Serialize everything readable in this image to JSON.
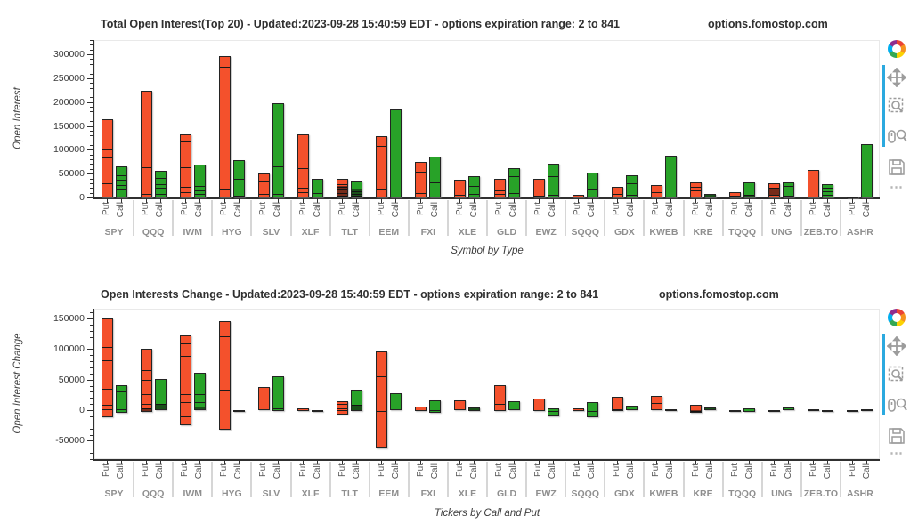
{
  "page": {
    "background": "#ffffff"
  },
  "colors": {
    "put": "#f4512c",
    "call": "#28a228",
    "bar_border": "#242424",
    "active_tool_accent": "#2ba9df",
    "category_label": "#8f8f8f"
  },
  "toolbar": {
    "icons": [
      {
        "name": "bokeh-logo",
        "active": false
      },
      {
        "name": "pan",
        "active": true
      },
      {
        "name": "box-zoom",
        "active": true
      },
      {
        "name": "wheel-zoom",
        "active": true
      },
      {
        "name": "save",
        "active": false
      },
      {
        "name": "more-options",
        "active": false
      }
    ]
  },
  "chart_data": [
    {
      "type": "bar",
      "title": "Total Open Interest(Top 20) - Updated:2023-09-28 15:40:59 EDT - options expiration range: 2 to 841",
      "watermark": "options.fomostop.com",
      "xlabel": "Symbol by Type",
      "ylabel": "Open Interest",
      "ylim": [
        0,
        330000
      ],
      "yticks": [
        0,
        50000,
        100000,
        150000,
        200000,
        250000,
        300000
      ],
      "minor_step": 10000,
      "grid": false,
      "legend": "none",
      "categories": [
        "SPY",
        "QQQ",
        "IWM",
        "HYG",
        "SLV",
        "XLF",
        "TLT",
        "EEM",
        "FXI",
        "XLE",
        "GLD",
        "EWZ",
        "SQQQ",
        "GDX",
        "KWEB",
        "KRE",
        "TQQQ",
        "UNG",
        "ZEB.TO",
        "ASHR"
      ],
      "bar_labels": [
        "Put",
        "Call"
      ],
      "series": [
        {
          "name": "Put",
          "color": "#f4512c",
          "ranges": [
            [
              0,
              164000
            ],
            [
              0,
              224000
            ],
            [
              0,
              133000
            ],
            [
              0,
              297000
            ],
            [
              0,
              50000
            ],
            [
              0,
              132000
            ],
            [
              0,
              40000
            ],
            [
              0,
              128000
            ],
            [
              0,
              74000
            ],
            [
              0,
              37000
            ],
            [
              0,
              40000
            ],
            [
              0,
              40000
            ],
            [
              0,
              5000
            ],
            [
              0,
              22000
            ],
            [
              0,
              27000
            ],
            [
              0,
              31000
            ],
            [
              0,
              11000
            ],
            [
              0,
              30000
            ],
            [
              0,
              57000
            ],
            [
              0,
              1500
            ]
          ],
          "lines": [
            [
              32000,
              86000,
              103000,
              122000
            ],
            [
              10000,
              66000
            ],
            [
              13000,
              24000,
              65000,
              119000
            ],
            [
              18000,
              276000
            ],
            [
              10000,
              35000
            ],
            [
              13000,
              22000,
              63000
            ],
            [
              6000,
              12000,
              18000,
              24000,
              30000
            ],
            [
              19000,
              110000
            ],
            [
              11000,
              21000,
              56000
            ],
            [
              8000
            ],
            [
              10000,
              17000
            ],
            [
              6000
            ],
            [],
            [
              10000
            ],
            [
              13000
            ],
            [
              17000,
              25000
            ],
            [
              5000
            ],
            [
              8000,
              22000
            ],
            [],
            []
          ],
          "dark": [
            [],
            [],
            [],
            [],
            [],
            [],
            [
              [
                0,
                26000
              ]
            ],
            [],
            [],
            [],
            [],
            [],
            [],
            [],
            [],
            [],
            [],
            [
              [
                8000,
                22000
              ]
            ],
            [],
            []
          ]
        },
        {
          "name": "Call",
          "color": "#28a228",
          "ranges": [
            [
              0,
              65000
            ],
            [
              0,
              56000
            ],
            [
              0,
              69000
            ],
            [
              0,
              78000
            ],
            [
              0,
              198000
            ],
            [
              0,
              40000
            ],
            [
              0,
              33000
            ],
            [
              0,
              185000
            ],
            [
              0,
              86000
            ],
            [
              0,
              45000
            ],
            [
              0,
              61000
            ],
            [
              0,
              70000
            ],
            [
              0,
              53000
            ],
            [
              0,
              47000
            ],
            [
              0,
              88000
            ],
            [
              0,
              8000
            ],
            [
              0,
              31000
            ],
            [
              0,
              31000
            ],
            [
              0,
              28000
            ],
            [
              0,
              112000
            ]
          ],
          "lines": [
            [
              19000,
              28000,
              40000,
              49000
            ],
            [
              10000,
              22000,
              29000,
              42000
            ],
            [
              9000,
              17000,
              27000,
              38000
            ],
            [
              5000,
              41000
            ],
            [
              10000,
              67000
            ],
            [
              11000
            ],
            [
              5000,
              10000,
              15000,
              20000
            ],
            [],
            [
              34000
            ],
            [
              9000,
              26000
            ],
            [
              12000,
              47000
            ],
            [
              7000,
              47000
            ],
            [
              19000
            ],
            [
              8000,
              20000,
              32000
            ],
            [
              4000
            ],
            [],
            [
              7000
            ],
            [
              5000,
              26000
            ],
            [
              8000,
              15000,
              22000
            ],
            []
          ],
          "dark": [
            [],
            [],
            [],
            [],
            [],
            [],
            [
              [
                0,
                20000
              ]
            ],
            [],
            [],
            [],
            [],
            [],
            [],
            [],
            [],
            [
              [
                0,
                8000
              ]
            ],
            [
              [
                0,
                7000
              ]
            ],
            [],
            [],
            []
          ]
        }
      ]
    },
    {
      "type": "bar",
      "title": "Open Interests Change - Updated:2023-09-28 15:40:59 EDT - options expiration range: 2 to 841",
      "watermark": "options.fomostop.com",
      "xlabel": "Tickers by Call and Put",
      "ylabel": "Open Interest Change",
      "ylim": [
        -80000,
        166000
      ],
      "yticks": [
        -50000,
        0,
        50000,
        100000,
        150000
      ],
      "minor_step": 10000,
      "grid": false,
      "legend": "none",
      "categories": [
        "SPY",
        "QQQ",
        "IWM",
        "HYG",
        "SLV",
        "XLF",
        "TLT",
        "EEM",
        "FXI",
        "XLE",
        "GLD",
        "EWZ",
        "SQQQ",
        "GDX",
        "KWEB",
        "KRE",
        "TQQQ",
        "UNG",
        "ZEB.TO",
        "ASHR"
      ],
      "bar_labels": [
        "Put",
        "Call"
      ],
      "series": [
        {
          "name": "Put",
          "color": "#f4512c",
          "ranges": [
            [
              -11000,
              150000
            ],
            [
              -2500,
              100000
            ],
            [
              -25000,
              123000
            ],
            [
              -31500,
              146000
            ],
            [
              0,
              38500
            ],
            [
              -1500,
              2500
            ],
            [
              -6500,
              14500
            ],
            [
              -62000,
              96500
            ],
            [
              -2000,
              6000
            ],
            [
              0,
              15500
            ],
            [
              -1000,
              40500
            ],
            [
              -1500,
              19500
            ],
            [
              -1000,
              2500
            ],
            [
              -1000,
              22000
            ],
            [
              0,
              24000
            ],
            [
              -5000,
              8500
            ],
            [
              -700,
              700
            ],
            [
              -700,
              700
            ],
            [
              0,
              1500
            ],
            [
              -700,
              700
            ]
          ],
          "lines": [
            [
              3000,
              10000,
              20000,
              37000,
              83000,
              105000
            ],
            [
              5000,
              12000,
              28000,
              51000,
              67000
            ],
            [
              -8000,
              8000,
              15000,
              28000,
              90000,
              110000
            ],
            [
              35000,
              123000
            ],
            [],
            [],
            [
              2000,
              5000,
              8000,
              11000
            ],
            [
              0,
              57000
            ],
            [],
            [],
            [
              11500
            ],
            [],
            [],
            [
              3000
            ],
            [
              13000
            ],
            [
              0
            ],
            [],
            [],
            [],
            []
          ],
          "dark": [
            [],
            [
              [
                0,
                5000
              ]
            ],
            [],
            [],
            [],
            [],
            [],
            [],
            [],
            [],
            [],
            [],
            [],
            [],
            [],
            [
              [
                -2000,
                2000
              ]
            ],
            [],
            [],
            [],
            []
          ]
        },
        {
          "name": "Call",
          "color": "#28a228",
          "ranges": [
            [
              -5000,
              41500
            ],
            [
              0,
              51500
            ],
            [
              0,
              61000
            ],
            [
              -1500,
              500
            ],
            [
              -1000,
              54800
            ],
            [
              -700,
              700
            ],
            [
              -2000,
              33500
            ],
            [
              -500,
              27500
            ],
            [
              -5000,
              15500
            ],
            [
              -1500,
              4000
            ],
            [
              0,
              14000
            ],
            [
              -9500,
              2500
            ],
            [
              -11000,
              13000
            ],
            [
              0,
              7500
            ],
            [
              0,
              1500
            ],
            [
              0,
              5000
            ],
            [
              -3500,
              3000
            ],
            [
              0,
              4000
            ],
            [
              -700,
              700
            ],
            [
              -1500,
              2000
            ]
          ],
          "lines": [
            [
              3000,
              8000,
              32000
            ],
            [
              12000
            ],
            [
              8000,
              14000,
              27000
            ],
            [],
            [
              4000,
              21000
            ],
            [],
            [
              10000
            ],
            [],
            [
              2000
            ],
            [],
            [
              3000
            ],
            [
              0
            ],
            [
              0
            ],
            [],
            [],
            [],
            [
              0
            ],
            [],
            [],
            []
          ],
          "dark": [
            [],
            [
              [
                0,
                12000
              ]
            ],
            [
              [
                0,
                8000
              ]
            ],
            [],
            [],
            [],
            [
              [
                0,
                10000
              ]
            ],
            [],
            [],
            [
              [
                -1500,
                4000
              ]
            ],
            [],
            [],
            [],
            [],
            [],
            [
              [
                0,
                5000
              ]
            ],
            [],
            [],
            [],
            []
          ]
        }
      ]
    }
  ]
}
